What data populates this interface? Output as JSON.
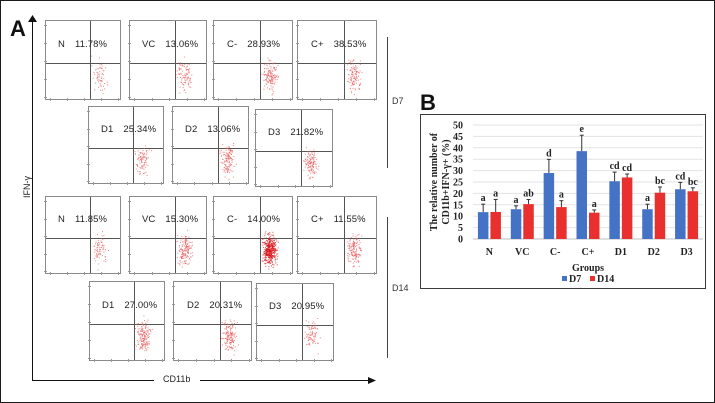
{
  "figure": {
    "panel_a_label": "A",
    "panel_b_label": "B",
    "y_axis_label": "IFN-γ",
    "x_axis_label": "CD11b",
    "day_labels": [
      "D7",
      "D14"
    ]
  },
  "flow_panels": {
    "d7_row1": [
      {
        "group": "N",
        "percent": "11.78%"
      },
      {
        "group": "VC",
        "percent": "13.06%"
      },
      {
        "group": "C-",
        "percent": "28.93%"
      },
      {
        "group": "C+",
        "percent": "38.53%"
      }
    ],
    "d7_row2": [
      {
        "group": "D1",
        "percent": "25.34%"
      },
      {
        "group": "D2",
        "percent": "13.06%"
      },
      {
        "group": "D3",
        "percent": "21.82%"
      }
    ],
    "d14_row1": [
      {
        "group": "N",
        "percent": "11.85%"
      },
      {
        "group": "VC",
        "percent": "15.30%"
      },
      {
        "group": "C-",
        "percent": "14.00%"
      },
      {
        "group": "C+",
        "percent": "11.55%"
      }
    ],
    "d14_row2": [
      {
        "group": "D1",
        "percent": "27.00%"
      },
      {
        "group": "D2",
        "percent": "20.31%"
      },
      {
        "group": "D3",
        "percent": "20.95%"
      }
    ]
  },
  "chart_data": {
    "type": "bar",
    "title": "",
    "xlabel": "Groups",
    "ylabel": "The relative number of CD11b+IFN-γ+ (%)",
    "ylim": [
      0,
      50
    ],
    "yticks": [
      0,
      5,
      10,
      15,
      20,
      25,
      30,
      35,
      40,
      45,
      50
    ],
    "grid": true,
    "legend_position": "bottom",
    "categories": [
      "N",
      "VC",
      "C-",
      "C+",
      "D1",
      "D2",
      "D3"
    ],
    "series": [
      {
        "name": "D7",
        "color": "#4472c4",
        "values": [
          11.78,
          13.06,
          28.93,
          38.53,
          25.34,
          13.06,
          21.82
        ],
        "errors": [
          3.5,
          1.5,
          6.0,
          7.0,
          4.0,
          2.2,
          3.0
        ],
        "letters": [
          "a",
          "a",
          "d",
          "e",
          "cd",
          "a",
          "cd"
        ]
      },
      {
        "name": "D14",
        "color": "#e8312f",
        "values": [
          11.85,
          15.3,
          14.0,
          11.55,
          27.0,
          20.31,
          20.95
        ],
        "errors": [
          5.5,
          2.0,
          2.8,
          1.2,
          1.5,
          2.5,
          1.5
        ],
        "letters": [
          "a",
          "ab",
          "a",
          "a",
          "cd",
          "bc",
          "bc"
        ]
      }
    ]
  }
}
